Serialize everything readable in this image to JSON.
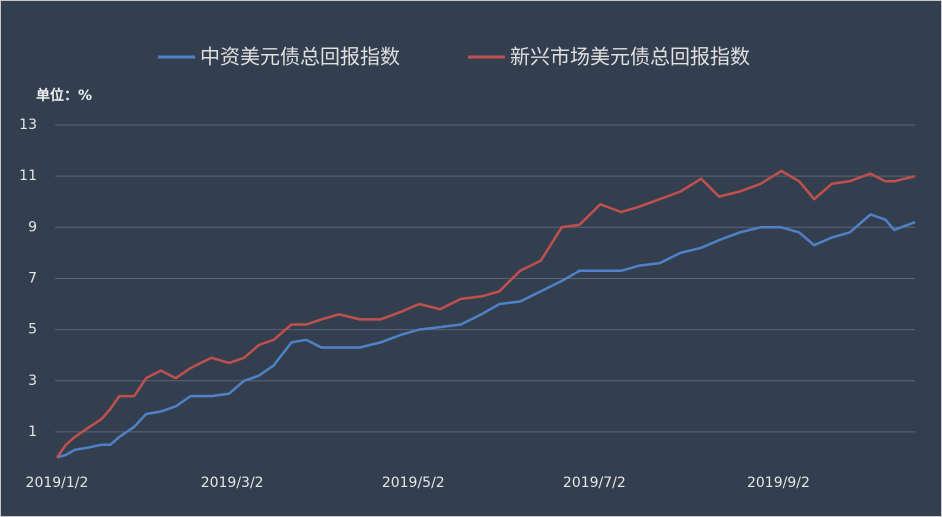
{
  "chart_data": {
    "type": "line",
    "unit_label": "单位：%",
    "x": [
      "2019/1/2",
      "2019/1/5",
      "2019/1/8",
      "2019/1/13",
      "2019/1/17",
      "2019/1/20",
      "2019/1/23",
      "2019/1/28",
      "2019/2/1",
      "2019/2/6",
      "2019/2/11",
      "2019/2/16",
      "2019/2/23",
      "2019/3/1",
      "2019/3/6",
      "2019/3/11",
      "2019/3/16",
      "2019/3/22",
      "2019/3/27",
      "2019/4/1",
      "2019/4/7",
      "2019/4/14",
      "2019/4/21",
      "2019/4/28",
      "2019/5/4",
      "2019/5/11",
      "2019/5/18",
      "2019/5/25",
      "2019/5/31",
      "2019/6/7",
      "2019/6/14",
      "2019/6/21",
      "2019/6/27",
      "2019/7/4",
      "2019/7/11",
      "2019/7/17",
      "2019/7/24",
      "2019/7/31",
      "2019/8/7",
      "2019/8/13",
      "2019/8/20",
      "2019/8/27",
      "2019/9/3",
      "2019/9/9",
      "2019/9/14",
      "2019/9/20",
      "2019/9/26",
      "2019/10/3",
      "2019/10/8",
      "2019/10/11",
      "2019/10/18"
    ],
    "series": [
      {
        "name": "中资美元债总回报指数",
        "color": "#4f81c7",
        "values": [
          0,
          0.1,
          0.3,
          0.4,
          0.5,
          0.5,
          0.8,
          1.2,
          1.7,
          1.8,
          2.0,
          2.4,
          2.4,
          2.5,
          3.0,
          3.2,
          3.6,
          4.5,
          4.6,
          4.3,
          4.3,
          4.3,
          4.5,
          4.8,
          5.0,
          5.1,
          5.2,
          5.6,
          6.0,
          6.1,
          6.5,
          6.9,
          7.3,
          7.3,
          7.3,
          7.5,
          7.6,
          8.0,
          8.2,
          8.5,
          8.8,
          9.0,
          9.0,
          8.8,
          8.3,
          8.6,
          8.8,
          9.5,
          9.3,
          8.9,
          9.2
        ]
      },
      {
        "name": "新兴市场美元债总回报指数",
        "color": "#c0504d",
        "values": [
          0,
          0.5,
          0.8,
          1.2,
          1.5,
          1.9,
          2.4,
          2.4,
          3.1,
          3.4,
          3.1,
          3.5,
          3.9,
          3.7,
          3.9,
          4.4,
          4.6,
          5.2,
          5.2,
          5.4,
          5.6,
          5.4,
          5.4,
          5.7,
          6.0,
          5.8,
          6.2,
          6.3,
          6.5,
          7.3,
          7.7,
          9.0,
          9.1,
          9.9,
          9.6,
          9.8,
          10.1,
          10.4,
          10.9,
          10.2,
          10.4,
          10.7,
          11.2,
          10.8,
          10.1,
          10.7,
          10.8,
          11.1,
          10.8,
          10.8,
          11.0
        ]
      }
    ],
    "xlim": [
      "2019/1/2",
      "2019/10/18"
    ],
    "xticks": [
      "2019/1/2",
      "2019/3/2",
      "2019/5/2",
      "2019/7/2",
      "2019/9/2"
    ],
    "ylim": [
      0,
      13
    ],
    "yticks": [
      1,
      3,
      5,
      7,
      9,
      11,
      13
    ],
    "grid": true
  }
}
